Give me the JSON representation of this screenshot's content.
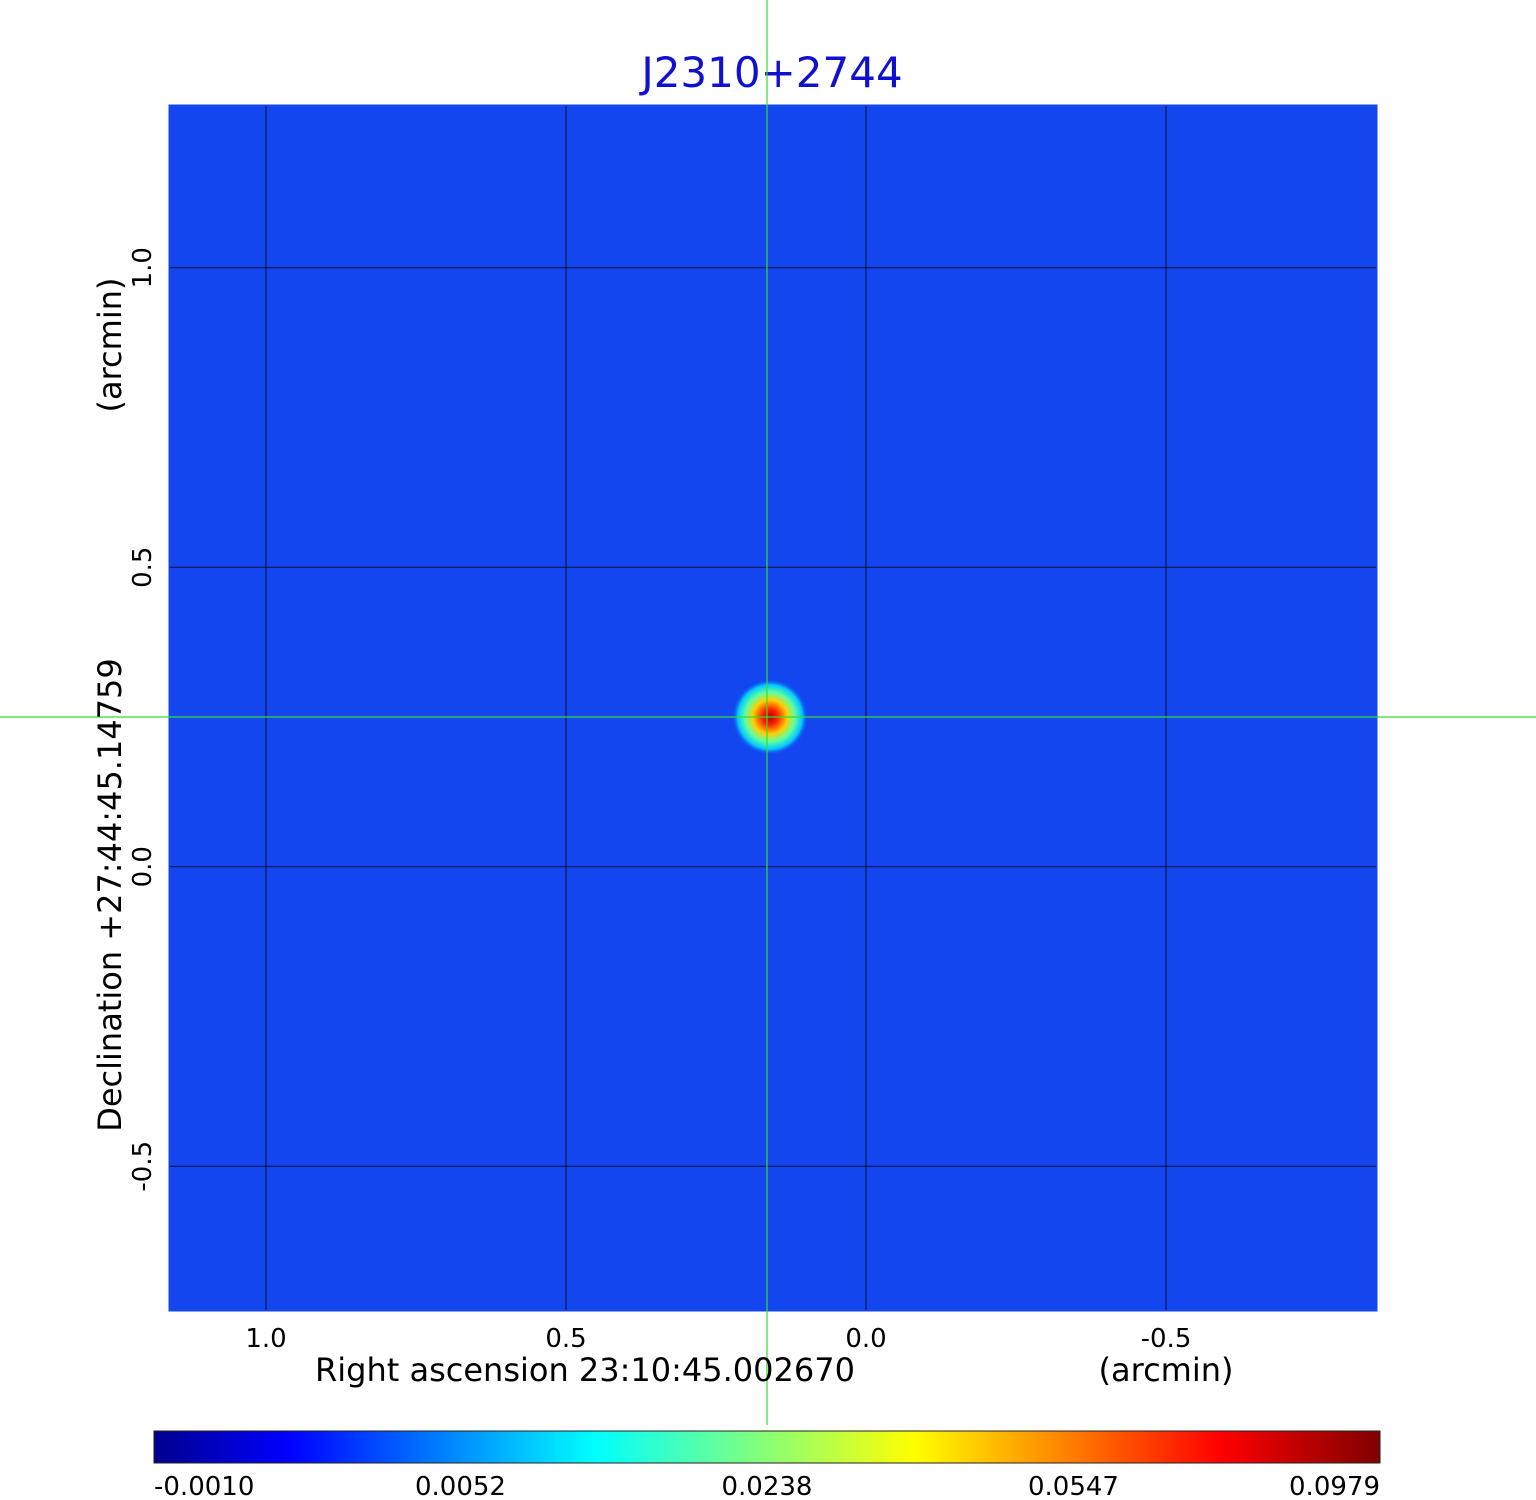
{
  "chart_data": {
    "type": "heatmap",
    "title": "J2310+2744",
    "xlabel": "Right ascension  23:10:45.002670",
    "xunit": "(arcmin)",
    "ylabel": "Declination  +27:44:45.14759",
    "yunit": "(arcmin)",
    "x_ticks": [
      "1.0",
      "0.5",
      "0.0",
      "-0.5"
    ],
    "x_tick_values": [
      1.0,
      0.5,
      0.0,
      -0.5
    ],
    "y_ticks": [
      "1.0",
      "0.5",
      "0.0",
      "-0.5"
    ],
    "y_tick_values": [
      1.0,
      0.5,
      0.0,
      -0.5
    ],
    "xlim": [
      1.16,
      -0.85
    ],
    "ylim": [
      -0.74,
      1.27
    ],
    "grid": true,
    "crosshair": {
      "x": 0.165,
      "y": 0.25,
      "color": "#33dd33"
    },
    "peak": {
      "x": 0.16,
      "y": 0.25
    },
    "background_color": "#1446f0",
    "colorbar": {
      "ticks": [
        "-0.0010",
        "0.0052",
        "0.0238",
        "0.0547",
        "0.0979"
      ],
      "tick_values": [
        -0.001,
        0.0052,
        0.0238,
        0.0547,
        0.0979
      ],
      "colormap": "jet"
    }
  }
}
